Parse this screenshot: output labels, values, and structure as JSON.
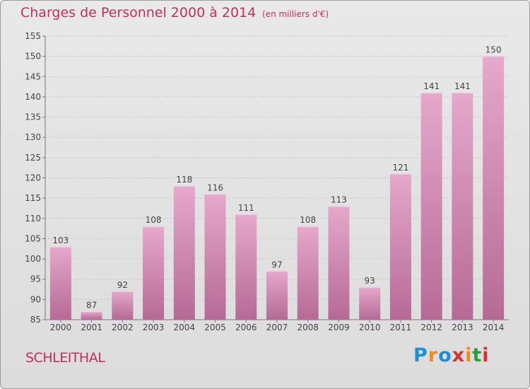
{
  "header": {
    "title": "Charges de Personnel 2000 à 2014",
    "subtitle": "(en milliers d'€)"
  },
  "place": "SCHLEITHAL",
  "logo": {
    "text": "Proxiti",
    "letters": [
      "P",
      "r",
      "o",
      "x",
      "i",
      "t",
      "i"
    ],
    "colors": [
      "#1e8fd6",
      "#f08a1c",
      "#1e8fd6",
      "#d8322e",
      "#f08a1c",
      "#2e9a3e",
      "#d8322e"
    ]
  },
  "colors": {
    "bar_top": "#e6a8cb",
    "bar_bottom": "#b56a95",
    "title": "#c0305a"
  },
  "chart_data": {
    "type": "bar",
    "categories": [
      "2000",
      "2001",
      "2002",
      "2003",
      "2004",
      "2005",
      "2006",
      "2007",
      "2008",
      "2009",
      "2010",
      "2011",
      "2012",
      "2013",
      "2014"
    ],
    "values": [
      103,
      87,
      92,
      108,
      118,
      116,
      111,
      97,
      108,
      113,
      93,
      121,
      141,
      141,
      150
    ],
    "ylim": [
      85,
      155
    ],
    "yticks": [
      85,
      90,
      95,
      100,
      105,
      110,
      115,
      120,
      125,
      130,
      135,
      140,
      145,
      150,
      155
    ],
    "grid": true
  }
}
